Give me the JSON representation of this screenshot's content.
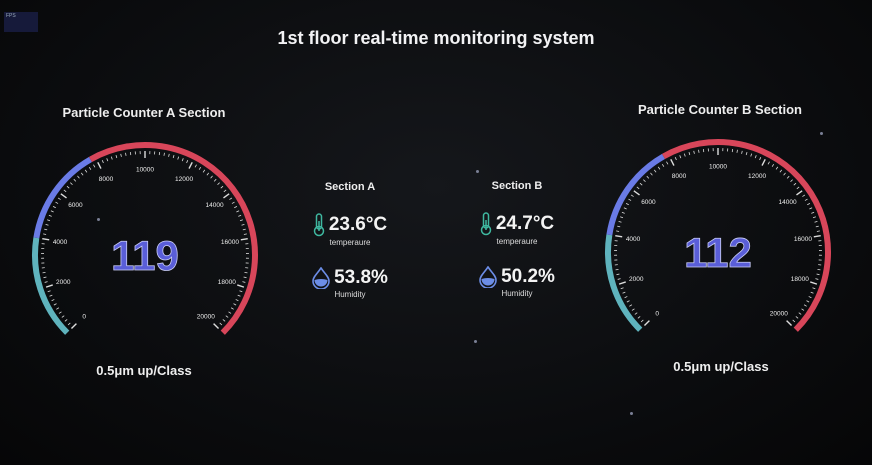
{
  "app": {
    "fps_label": "FPS",
    "title": "1st floor real-time monitoring system"
  },
  "colors": {
    "teal": "#5fb3bd",
    "blue": "#6a7be6",
    "red": "#d8465a",
    "value": "#5a5ed8",
    "thermo": "#3fb8a0",
    "drop": "#6c8de6"
  },
  "gauges": [
    {
      "title": "Particle Counter A Section",
      "value": "119",
      "subtitle": "0.5μm up/Class",
      "min": 0,
      "max": 20000,
      "ticks": [
        "0",
        "2000",
        "4000",
        "6000",
        "8000",
        "10000",
        "12000",
        "14000",
        "16000",
        "18000",
        "20000"
      ],
      "segments": [
        {
          "to": 0.2,
          "color": "teal"
        },
        {
          "to": 0.39,
          "color": "blue"
        },
        {
          "to": 1,
          "color": "red"
        }
      ]
    },
    {
      "title": "Particle Counter B Section",
      "value": "112",
      "subtitle": "0.5μm up/Class",
      "min": 0,
      "max": 20000,
      "ticks": [
        "0",
        "2000",
        "4000",
        "6000",
        "8000",
        "10000",
        "12000",
        "14000",
        "16000",
        "18000",
        "20000"
      ],
      "segments": [
        {
          "to": 0.2,
          "color": "teal"
        },
        {
          "to": 0.39,
          "color": "blue"
        },
        {
          "to": 1,
          "color": "red"
        }
      ]
    }
  ],
  "sections": [
    {
      "title": "Section A",
      "temperature": "23.6°C",
      "temperature_label": "temperaure",
      "humidity": "53.8%",
      "humidity_label": "Humidity"
    },
    {
      "title": "Section B",
      "temperature": "24.7°C",
      "temperature_label": "temperaure",
      "humidity": "50.2%",
      "humidity_label": "Humidity"
    }
  ]
}
